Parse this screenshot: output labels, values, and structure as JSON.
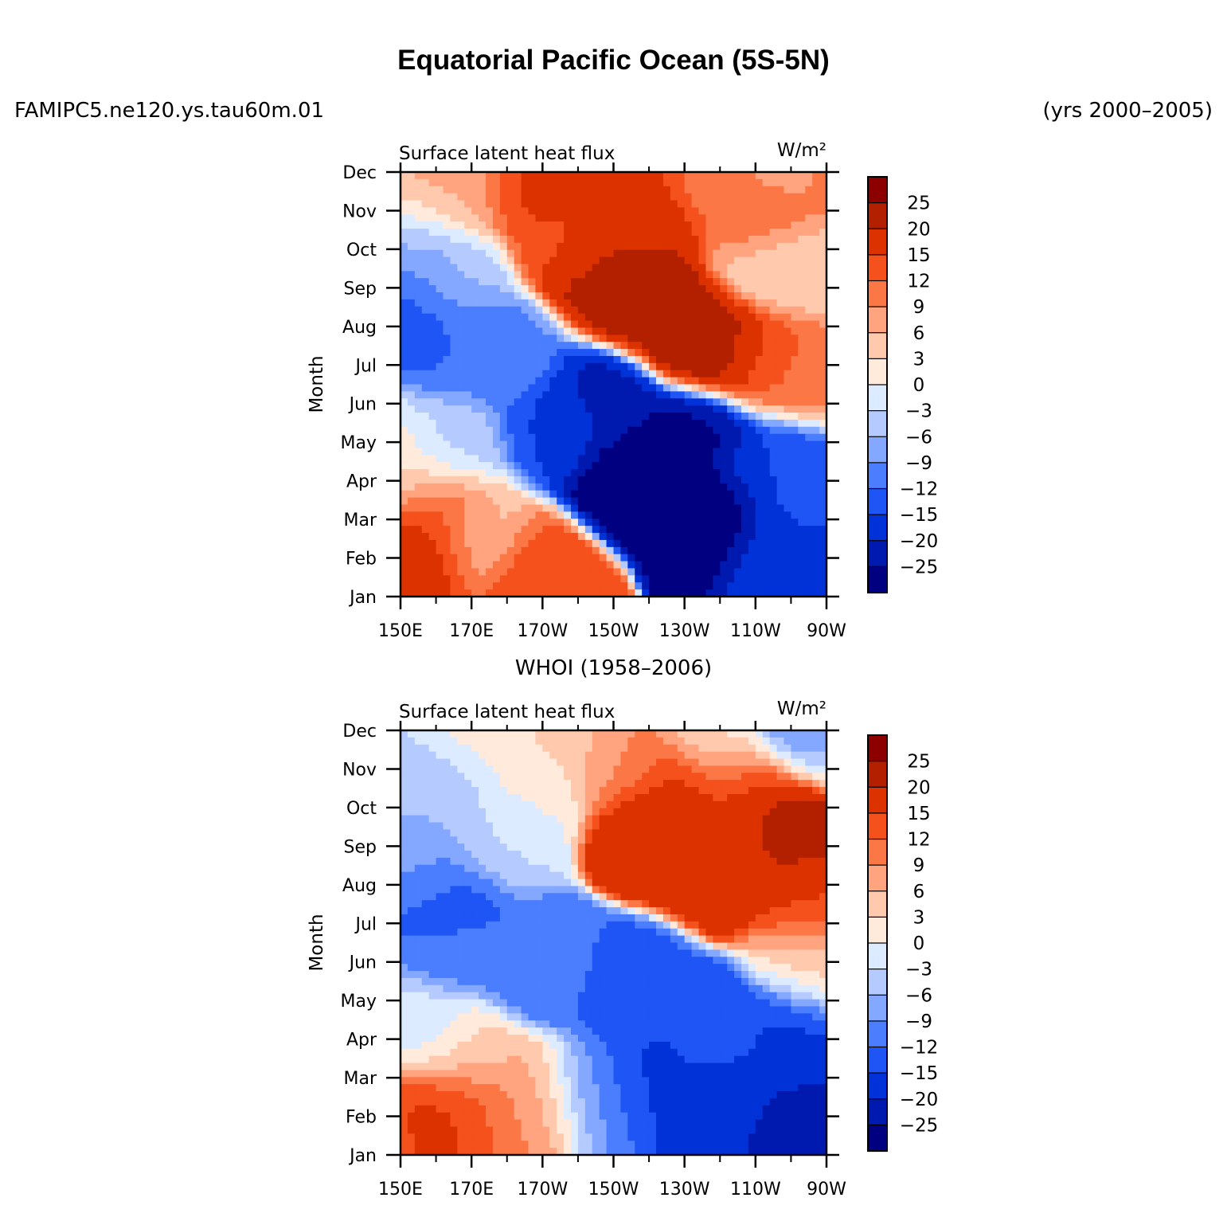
{
  "title": "Equatorial Pacific Ocean (5S-5N)",
  "case_label": "FAMIPC5.ne120.ys.tau60m.01",
  "years_label": "(yrs 2000–2005)",
  "whoi_label": "WHOI (1958–2006)",
  "chart_data": [
    {
      "type": "heatmap",
      "name": "model-panel",
      "left_label": "Surface latent heat flux",
      "right_label": "W/m²",
      "ylabel": "Month",
      "x_ticks": [
        "150E",
        "170E",
        "170W",
        "150W",
        "130W",
        "110W",
        "90W"
      ],
      "x_values": [
        150,
        170,
        190,
        210,
        230,
        250,
        270
      ],
      "xlim": [
        150,
        270
      ],
      "y_ticks": [
        "Jan",
        "Feb",
        "Mar",
        "Apr",
        "May",
        "Jun",
        "Jul",
        "Aug",
        "Sep",
        "Oct",
        "Nov",
        "Dec"
      ],
      "colorbar": {
        "levels": [
          -25,
          -20,
          -15,
          -12,
          -9,
          -6,
          -3,
          0,
          3,
          6,
          9,
          12,
          15,
          20,
          25
        ],
        "labels": [
          "25",
          "20",
          "15",
          "12",
          "9",
          "6",
          "3",
          "0",
          "−3",
          "−6",
          "−9",
          "−12",
          "−15",
          "−20",
          "−25"
        ],
        "colors": [
          "#000080",
          "#0019af",
          "#0032d7",
          "#1f55f5",
          "#4b7dff",
          "#84a7ff",
          "#b5cbff",
          "#dcebff",
          "#ffeadc",
          "#ffc9ae",
          "#ffa47f",
          "#fb7846",
          "#f5511d",
          "#dc3200",
          "#b22000",
          "#8c0000"
        ]
      },
      "anomaly_blobs": [
        {
          "lon": 150,
          "month": 0.5,
          "value": 15
        },
        {
          "lon": 156,
          "month": 1.3,
          "value": 20
        },
        {
          "lon": 162,
          "month": 2.1,
          "value": 12
        },
        {
          "lon": 172,
          "month": 1.6,
          "value": 4
        },
        {
          "lon": 188,
          "month": 0.6,
          "value": 15
        },
        {
          "lon": 150,
          "month": 3.3,
          "value": 3
        },
        {
          "lon": 165,
          "month": 4.0,
          "value": -4
        },
        {
          "lon": 193,
          "month": 4.4,
          "value": -15
        },
        {
          "lon": 215,
          "month": 3.1,
          "value": -30
        },
        {
          "lon": 238,
          "month": 2.0,
          "value": -28
        },
        {
          "lon": 258,
          "month": 1.2,
          "value": -16
        },
        {
          "lon": 270,
          "month": 0.8,
          "value": -18
        },
        {
          "lon": 270,
          "month": 2.6,
          "value": -12
        },
        {
          "lon": 205,
          "month": 5.0,
          "value": -22
        },
        {
          "lon": 232,
          "month": 4.0,
          "value": -26
        },
        {
          "lon": 256,
          "month": 3.4,
          "value": -15
        },
        {
          "lon": 155,
          "month": 7.5,
          "value": -14
        },
        {
          "lon": 168,
          "month": 6.4,
          "value": -12
        },
        {
          "lon": 182,
          "month": 6.2,
          "value": -10
        },
        {
          "lon": 153,
          "month": 9.0,
          "value": -8
        },
        {
          "lon": 165,
          "month": 8.3,
          "value": -5
        },
        {
          "lon": 152,
          "month": 10.2,
          "value": 2
        },
        {
          "lon": 158,
          "month": 11.0,
          "value": 9
        },
        {
          "lon": 168,
          "month": 10.5,
          "value": 6
        },
        {
          "lon": 185,
          "month": 10.7,
          "value": 16
        },
        {
          "lon": 200,
          "month": 10.8,
          "value": 18
        },
        {
          "lon": 215,
          "month": 10.3,
          "value": 16
        },
        {
          "lon": 240,
          "month": 10.6,
          "value": 10
        },
        {
          "lon": 255,
          "month": 10.9,
          "value": 6
        },
        {
          "lon": 268,
          "month": 11.0,
          "value": 10
        },
        {
          "lon": 252,
          "month": 8.8,
          "value": 2
        },
        {
          "lon": 264,
          "month": 8.4,
          "value": 4
        },
        {
          "lon": 250,
          "month": 9.8,
          "value": 16
        },
        {
          "lon": 208,
          "month": 8.2,
          "value": 22
        },
        {
          "lon": 222,
          "month": 7.6,
          "value": 24
        },
        {
          "lon": 238,
          "month": 6.6,
          "value": 24
        },
        {
          "lon": 254,
          "month": 6.2,
          "value": 14
        },
        {
          "lon": 264,
          "month": 5.8,
          "value": 10
        },
        {
          "lon": 196,
          "month": 9.4,
          "value": 14
        },
        {
          "lon": 218,
          "month": 9.3,
          "value": 20
        }
      ]
    },
    {
      "type": "heatmap",
      "name": "whoi-panel",
      "left_label": "Surface latent heat flux",
      "right_label": "W/m²",
      "ylabel": "Month",
      "x_ticks": [
        "150E",
        "170E",
        "170W",
        "150W",
        "130W",
        "110W",
        "90W"
      ],
      "x_values": [
        150,
        170,
        190,
        210,
        230,
        250,
        270
      ],
      "xlim": [
        150,
        270
      ],
      "y_ticks": [
        "Jan",
        "Feb",
        "Mar",
        "Apr",
        "May",
        "Jun",
        "Jul",
        "Aug",
        "Sep",
        "Oct",
        "Nov",
        "Dec"
      ],
      "colorbar": {
        "levels": [
          -25,
          -20,
          -15,
          -12,
          -9,
          -6,
          -3,
          0,
          3,
          6,
          9,
          12,
          15,
          20,
          25
        ],
        "labels": [
          "25",
          "20",
          "15",
          "12",
          "9",
          "6",
          "3",
          "0",
          "−3",
          "−6",
          "−9",
          "−12",
          "−15",
          "−20",
          "−25"
        ],
        "colors": [
          "#000080",
          "#0019af",
          "#0032d7",
          "#1f55f5",
          "#4b7dff",
          "#84a7ff",
          "#b5cbff",
          "#dcebff",
          "#ffeadc",
          "#ffc9ae",
          "#ffa47f",
          "#fb7846",
          "#f5511d",
          "#dc3200",
          "#b22000",
          "#8c0000"
        ]
      },
      "anomaly_blobs": [
        {
          "lon": 150,
          "month": 0.8,
          "value": 14
        },
        {
          "lon": 160,
          "month": 1.1,
          "value": 17
        },
        {
          "lon": 170,
          "month": 1.0,
          "value": 15
        },
        {
          "lon": 180,
          "month": 0.9,
          "value": 10
        },
        {
          "lon": 188,
          "month": 1.3,
          "value": 6
        },
        {
          "lon": 168,
          "month": 2.4,
          "value": 4
        },
        {
          "lon": 155,
          "month": 3.2,
          "value": -2
        },
        {
          "lon": 205,
          "month": 1.5,
          "value": -9
        },
        {
          "lon": 220,
          "month": 1.8,
          "value": -16
        },
        {
          "lon": 245,
          "month": 1.2,
          "value": -19
        },
        {
          "lon": 262,
          "month": 0.6,
          "value": -22
        },
        {
          "lon": 240,
          "month": 3.0,
          "value": -14
        },
        {
          "lon": 262,
          "month": 3.2,
          "value": -16
        },
        {
          "lon": 215,
          "month": 4.4,
          "value": -13
        },
        {
          "lon": 190,
          "month": 5.0,
          "value": -11
        },
        {
          "lon": 165,
          "month": 5.6,
          "value": -11
        },
        {
          "lon": 163,
          "month": 6.5,
          "value": -14
        },
        {
          "lon": 156,
          "month": 7.6,
          "value": -8
        },
        {
          "lon": 160,
          "month": 9.5,
          "value": -5
        },
        {
          "lon": 178,
          "month": 8.3,
          "value": -3
        },
        {
          "lon": 188,
          "month": 9.7,
          "value": 1
        },
        {
          "lon": 195,
          "month": 10.7,
          "value": 4
        },
        {
          "lon": 172,
          "month": 11.0,
          "value": 1
        },
        {
          "lon": 212,
          "month": 10.2,
          "value": 9
        },
        {
          "lon": 228,
          "month": 9.4,
          "value": 16
        },
        {
          "lon": 222,
          "month": 8.4,
          "value": 20
        },
        {
          "lon": 238,
          "month": 7.6,
          "value": 18
        },
        {
          "lon": 250,
          "month": 8.3,
          "value": 18
        },
        {
          "lon": 264,
          "month": 7.8,
          "value": 20
        },
        {
          "lon": 260,
          "month": 8.6,
          "value": 26
        },
        {
          "lon": 268,
          "month": 6.6,
          "value": 14
        },
        {
          "lon": 248,
          "month": 9.6,
          "value": 14
        },
        {
          "lon": 240,
          "month": 10.8,
          "value": 2
        },
        {
          "lon": 262,
          "month": 11.2,
          "value": -12
        },
        {
          "lon": 270,
          "month": 10.6,
          "value": -4
        },
        {
          "lon": 268,
          "month": 4.8,
          "value": 4
        }
      ]
    }
  ]
}
